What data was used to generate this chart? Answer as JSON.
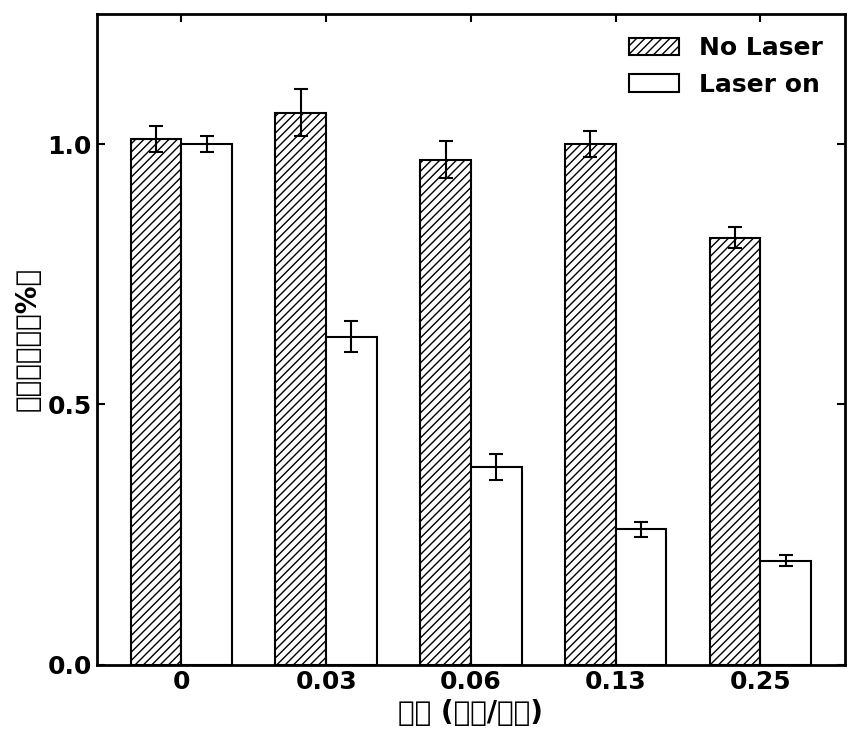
{
  "categories": [
    "0",
    "0.03",
    "0.06",
    "0.13",
    "0.25"
  ],
  "no_laser_values": [
    1.01,
    1.06,
    0.97,
    1.0,
    0.82
  ],
  "laser_on_values": [
    1.0,
    0.63,
    0.38,
    0.26,
    0.2
  ],
  "no_laser_errors": [
    0.025,
    0.045,
    0.035,
    0.025,
    0.02
  ],
  "laser_on_errors": [
    0.015,
    0.03,
    0.025,
    0.015,
    0.01
  ],
  "xlabel": "浓度 (毫克/毫升)",
  "ylabel": "细胞存活率（%）",
  "legend_no_laser": "No Laser",
  "legend_laser_on": "Laser on",
  "ylim": [
    0.0,
    1.25
  ],
  "yticks": [
    0.0,
    0.5,
    1.0
  ],
  "bar_width": 0.35,
  "hatch_pattern": "////",
  "background_color": "#ffffff",
  "bar_edge_color": "#000000",
  "no_laser_face_color": "#ffffff",
  "laser_on_face_color": "#ffffff",
  "axis_fontsize": 20,
  "tick_fontsize": 18,
  "legend_fontsize": 18
}
